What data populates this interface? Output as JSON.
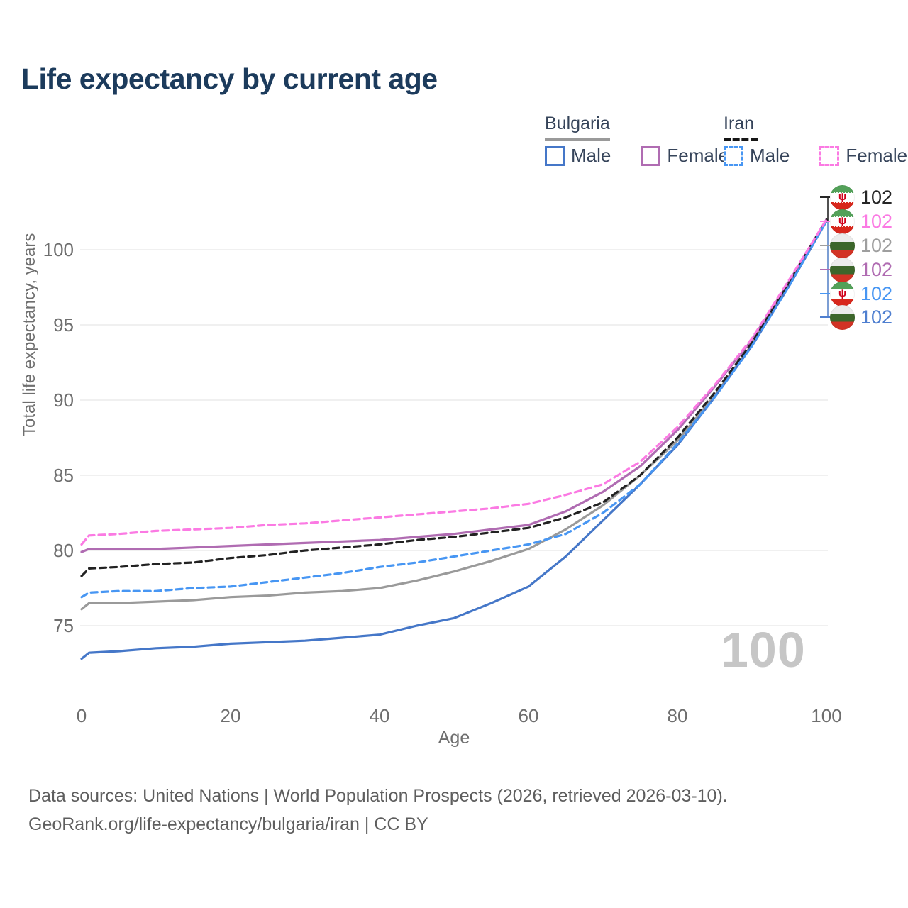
{
  "page": {
    "title": "Life expectancy by current age",
    "watermark": "100",
    "footer_line1": "Data sources: United Nations | World Population Prospects (2026, retrieved 2026-03-10).",
    "footer_line2": "GeoRank.org/life-expectancy/bulgaria/iran | CC BY"
  },
  "legend": {
    "bulgaria": {
      "title": "Bulgaria",
      "male_label": "Male",
      "female_label": "Female"
    },
    "iran": {
      "title": "Iran",
      "male_label": "Male",
      "female_label": "Female"
    }
  },
  "colors": {
    "title": "#1c3b5c",
    "bulgaria_line": "#9a9a9a",
    "bulgaria_male": "#4577c8",
    "bulgaria_female": "#b06cb2",
    "iran_line": "#222222",
    "iran_male": "#4796f3",
    "iran_female": "#fb7ae3",
    "grid": "#ececec",
    "axis_text": "#6e6e6e",
    "watermark": "#c6c6c6"
  },
  "chart_data": {
    "type": "line",
    "title": "Life expectancy by current age",
    "xlabel": "Age",
    "ylabel": "Total life expectancy, years",
    "x_ticks": [
      0,
      20,
      40,
      60,
      80,
      100
    ],
    "y_ticks": [
      75,
      80,
      85,
      90,
      95,
      100
    ],
    "xlim": [
      0,
      100
    ],
    "ylim": [
      72,
      103
    ],
    "grid": "horizontal",
    "legend_position": "top-right",
    "ages": [
      0,
      1,
      5,
      10,
      15,
      20,
      25,
      30,
      35,
      40,
      45,
      50,
      55,
      60,
      65,
      70,
      75,
      80,
      85,
      90,
      95,
      100
    ],
    "series": [
      {
        "name": "Bulgaria (both sexes)",
        "key": "bulgaria-both",
        "color": "#9a9a9a",
        "dash": false,
        "values": [
          76.1,
          76.5,
          76.5,
          76.6,
          76.7,
          76.9,
          77.0,
          77.2,
          77.3,
          77.5,
          78.0,
          78.6,
          79.3,
          80.1,
          81.4,
          83.0,
          85.0,
          87.3,
          90.3,
          93.7,
          97.7,
          101.9
        ]
      },
      {
        "name": "Bulgaria Male",
        "key": "bulgaria-male",
        "color": "#4577c8",
        "dash": false,
        "values": [
          72.8,
          73.2,
          73.3,
          73.5,
          73.6,
          73.8,
          73.9,
          74.0,
          74.2,
          74.4,
          75.0,
          75.5,
          76.5,
          77.6,
          79.6,
          82.0,
          84.4,
          87.0,
          90.2,
          93.6,
          97.6,
          101.9
        ]
      },
      {
        "name": "Bulgaria Female",
        "key": "bulgaria-female",
        "color": "#b06cb2",
        "dash": false,
        "values": [
          79.9,
          80.1,
          80.1,
          80.1,
          80.2,
          80.3,
          80.4,
          80.5,
          80.6,
          80.7,
          80.9,
          81.1,
          81.4,
          81.7,
          82.6,
          83.9,
          85.6,
          88.0,
          90.9,
          94.0,
          97.9,
          102.0
        ]
      },
      {
        "name": "Iran (both sexes)",
        "key": "iran-both",
        "color": "#222222",
        "dash": true,
        "values": [
          78.3,
          78.8,
          78.9,
          79.1,
          79.2,
          79.5,
          79.7,
          80.0,
          80.2,
          80.4,
          80.7,
          80.9,
          81.2,
          81.5,
          82.2,
          83.2,
          85.0,
          87.5,
          90.5,
          93.8,
          97.8,
          102.0
        ]
      },
      {
        "name": "Iran Male",
        "key": "iran-male",
        "color": "#4796f3",
        "dash": true,
        "values": [
          76.9,
          77.2,
          77.3,
          77.3,
          77.5,
          77.6,
          77.9,
          78.2,
          78.5,
          78.9,
          79.2,
          79.6,
          80.0,
          80.4,
          81.1,
          82.5,
          84.4,
          87.1,
          90.2,
          93.6,
          97.6,
          101.9
        ]
      },
      {
        "name": "Iran Female",
        "key": "iran-female",
        "color": "#fb7ae3",
        "dash": true,
        "values": [
          80.4,
          81.0,
          81.1,
          81.3,
          81.4,
          81.5,
          81.7,
          81.8,
          82.0,
          82.2,
          82.4,
          82.6,
          82.8,
          83.1,
          83.7,
          84.4,
          85.9,
          88.2,
          91.0,
          94.1,
          98.0,
          102.0
        ]
      }
    ],
    "end_labels": [
      {
        "series": "iran-both",
        "flag": "iran",
        "value": "102",
        "color": "#262626"
      },
      {
        "series": "iran-female",
        "flag": "iran",
        "value": "102",
        "color": "#fb7ae3"
      },
      {
        "series": "bulgaria-both",
        "flag": "bulgaria",
        "value": "102",
        "color": "#9e9e9e"
      },
      {
        "series": "bulgaria-female",
        "flag": "bulgaria",
        "value": "102",
        "color": "#b06cb2"
      },
      {
        "series": "iran-male",
        "flag": "iran",
        "value": "102",
        "color": "#4796f3"
      },
      {
        "series": "bulgaria-male",
        "flag": "bulgaria",
        "value": "102",
        "color": "#4f7fd0"
      }
    ]
  }
}
